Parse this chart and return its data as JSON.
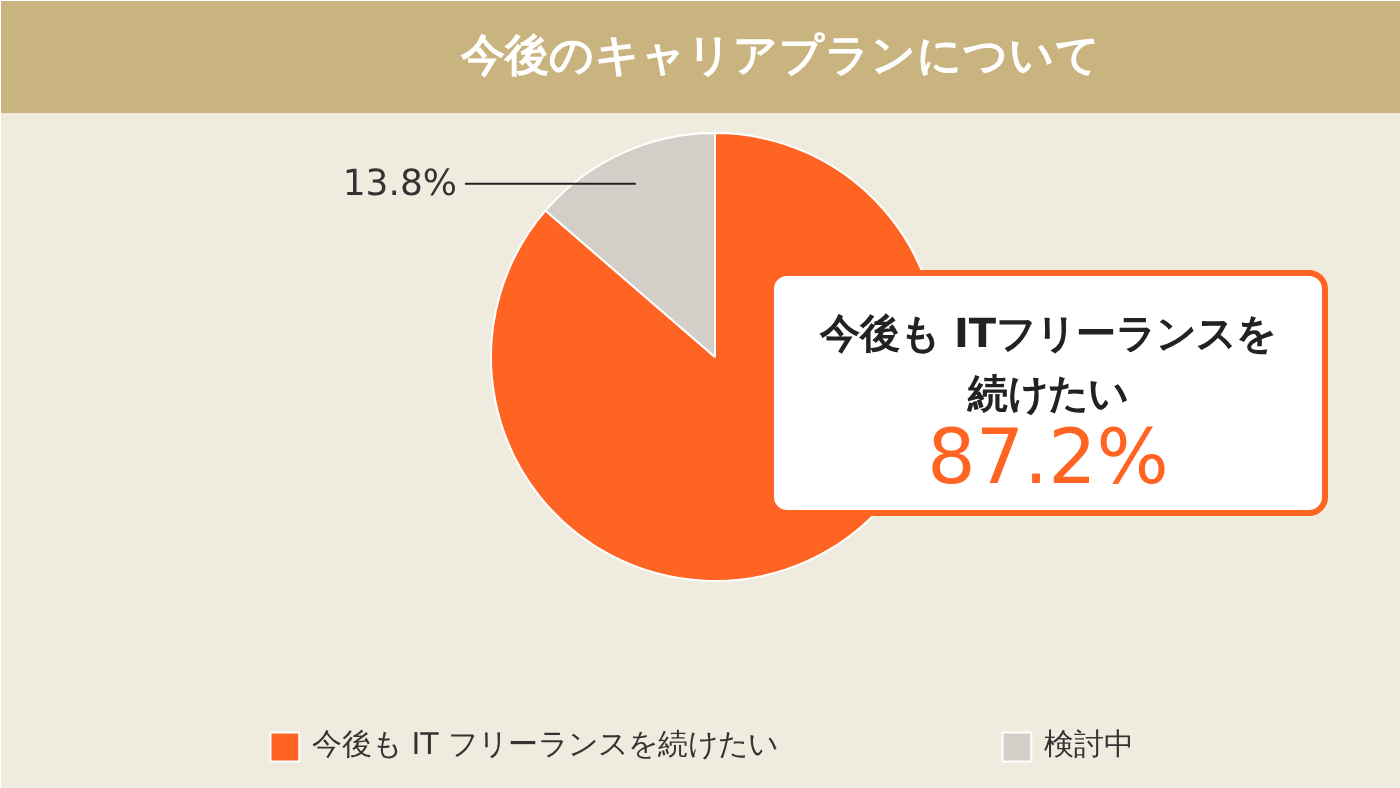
{
  "chart_data": {
    "type": "pie",
    "title": "今後のキャリアプランについて",
    "categories": [
      "今後も IT フリーランスを続けたい",
      "検討中"
    ],
    "values": [
      87.2,
      13.8
    ],
    "colors": [
      "#ff6422",
      "#d3cfc8"
    ],
    "value_labels": [
      "87.2%",
      "13.8%"
    ],
    "annotations": [
      "今後も ITフリーランスを",
      "続けたい"
    ],
    "legend": "bottom"
  }
}
